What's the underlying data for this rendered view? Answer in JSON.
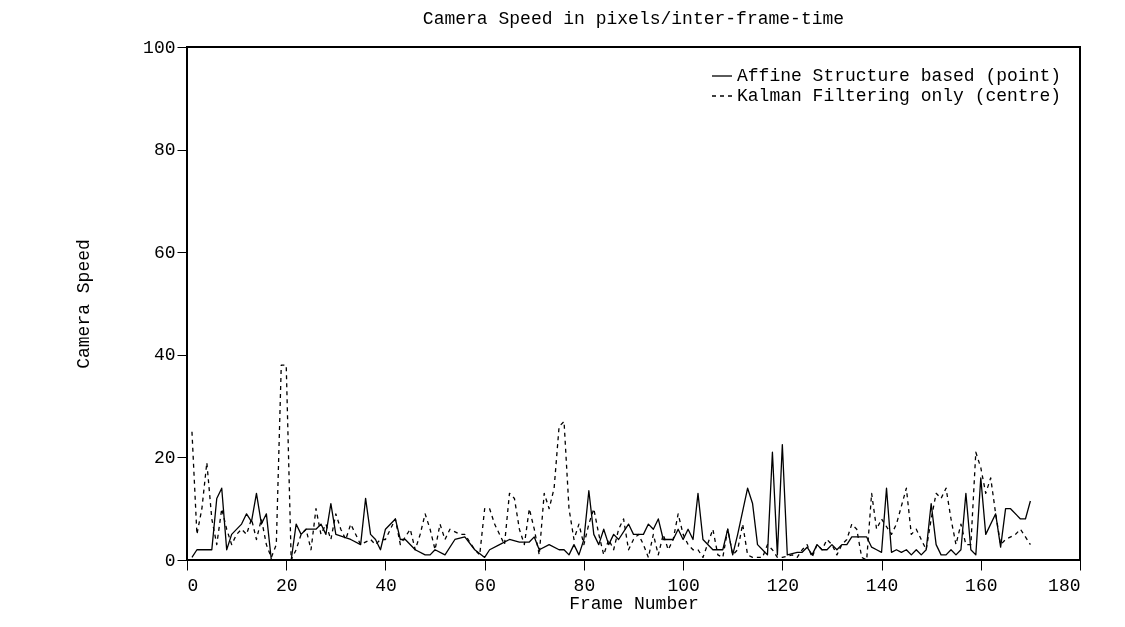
{
  "chart_data": {
    "type": "line",
    "title": "Camera Speed in pixels/inter-frame-time",
    "xlabel": "Frame Number",
    "ylabel": "Camera Speed",
    "xlim": [
      0,
      180
    ],
    "xticks": [
      0,
      20,
      40,
      60,
      80,
      100,
      120,
      140,
      160,
      180
    ],
    "ylim": [
      0,
      100
    ],
    "yticks": [
      0,
      20,
      40,
      60,
      80,
      100
    ],
    "grid": false,
    "legend": "top right",
    "series": [
      {
        "name": "Affine Structure based (point)",
        "color": "#000000",
        "line_style": "solid",
        "x": [
          1,
          2,
          5,
          6,
          7,
          8,
          9,
          11,
          12,
          13,
          14,
          15,
          16,
          17,
          21,
          22,
          23,
          24,
          26,
          27,
          28,
          29,
          30,
          33,
          35,
          36,
          37,
          38,
          39,
          40,
          42,
          43,
          44,
          46,
          48,
          49,
          50,
          52,
          54,
          56,
          58,
          60,
          61,
          63,
          65,
          67,
          69,
          70,
          71,
          73,
          75,
          76,
          77,
          78,
          79,
          80,
          81,
          82,
          83,
          84,
          85,
          86,
          87,
          89,
          90,
          92,
          93,
          94,
          95,
          96,
          98,
          99,
          100,
          101,
          102,
          103,
          104,
          106,
          108,
          109,
          110,
          111,
          113,
          114,
          115,
          117,
          118,
          119,
          120,
          121,
          123,
          124,
          125,
          126,
          127,
          128,
          129,
          130,
          131,
          132,
          133,
          134,
          137,
          138,
          139,
          140,
          141,
          142,
          143,
          144,
          145,
          146,
          147,
          148,
          149,
          150,
          151,
          152,
          153,
          154,
          155,
          156,
          157,
          158,
          159,
          160,
          161,
          163,
          164,
          165,
          166,
          168,
          169,
          170
        ],
        "values": [
          0.5,
          2,
          2,
          12,
          14,
          2,
          5,
          7,
          9,
          7.5,
          13,
          7,
          9,
          0,
          0,
          7,
          5,
          6,
          6,
          7,
          5,
          11,
          5,
          4,
          3,
          12,
          5,
          4,
          2,
          6,
          8,
          4,
          4,
          2,
          1,
          1,
          2,
          1,
          4,
          4.5,
          2,
          0.5,
          2,
          3,
          4,
          3.5,
          3.5,
          4.5,
          2,
          3,
          2,
          2,
          1,
          3,
          1,
          4,
          13.5,
          5,
          3,
          6,
          3,
          5,
          4,
          7,
          5,
          5,
          7,
          6,
          8,
          4,
          4,
          6,
          4,
          6,
          4,
          13,
          4,
          2,
          2,
          6,
          1,
          5,
          14,
          11,
          3,
          1,
          21,
          1,
          22.5,
          1,
          1.5,
          1.5,
          2.5,
          1,
          3,
          2,
          2,
          3,
          2,
          3,
          3,
          4.5,
          4.5,
          2.5,
          2,
          1.5,
          14,
          1.5,
          2,
          1.5,
          2,
          1,
          2,
          1,
          2,
          11,
          3,
          1,
          1,
          2,
          1,
          2,
          13,
          2,
          1,
          16,
          5,
          9,
          2.5,
          10,
          10,
          8,
          8,
          11.5
        ]
      },
      {
        "name": "Kalman Filtering only (centre)",
        "color": "#000000",
        "line_style": "dashed",
        "x": [
          1,
          2,
          3,
          4,
          5,
          6,
          7,
          8,
          9,
          10,
          11,
          12,
          13,
          14,
          15,
          16,
          17,
          18,
          19,
          20,
          21,
          22,
          23,
          24,
          25,
          26,
          27,
          28,
          29,
          30,
          31,
          32,
          33,
          35,
          37,
          38,
          39,
          40,
          42,
          43,
          45,
          46,
          47,
          48,
          49,
          50,
          51,
          52,
          53,
          55,
          56,
          58,
          59,
          60,
          61,
          62,
          64,
          65,
          66,
          67,
          68,
          69,
          70,
          71,
          72,
          73,
          74,
          75,
          76,
          77,
          78,
          79,
          80,
          81,
          82,
          83,
          84,
          85,
          86,
          87,
          88,
          89,
          90,
          91,
          92,
          93,
          94,
          95,
          96,
          97,
          98,
          99,
          100,
          101,
          102,
          103,
          104,
          106,
          107,
          108,
          109,
          110,
          111,
          112,
          113,
          114,
          116,
          117,
          118,
          119,
          120,
          122,
          123,
          124,
          125,
          126,
          127,
          128,
          129,
          130,
          131,
          132,
          133,
          134,
          135,
          136,
          137,
          138,
          139,
          140,
          142,
          143,
          145,
          146,
          147,
          148,
          149,
          150,
          151,
          152,
          153,
          154,
          155,
          156,
          157,
          158,
          159,
          160,
          161,
          162,
          163,
          164,
          165,
          167,
          168,
          170
        ],
        "values": [
          25,
          5,
          10,
          19,
          8,
          3,
          10,
          6,
          3,
          5,
          6,
          5,
          8,
          4,
          8,
          3,
          0.5,
          3,
          38,
          38,
          0,
          2,
          5,
          6,
          2,
          10,
          5,
          7,
          4,
          9,
          6,
          4,
          7,
          3,
          4,
          3,
          4,
          4,
          8,
          3,
          6,
          2,
          5,
          9,
          6,
          2,
          7,
          4,
          6,
          5,
          5,
          2,
          1,
          10,
          10,
          7,
          3,
          13,
          12,
          6,
          3,
          10,
          6,
          1,
          13,
          10,
          14,
          26,
          27,
          10,
          4,
          7,
          3,
          7,
          10,
          5,
          1,
          4,
          2,
          6,
          8,
          2,
          4,
          5,
          3,
          0.5,
          5,
          1,
          5,
          2,
          4,
          9,
          5,
          3,
          2,
          2,
          0.5,
          6,
          1,
          0.5,
          6,
          1,
          2,
          7,
          1,
          0.5,
          0.5,
          3,
          2,
          0.5,
          0.5,
          1,
          0.5,
          2,
          3,
          0.5,
          3,
          2,
          4,
          3,
          1,
          3,
          4,
          7,
          6,
          0.5,
          0,
          13,
          6,
          8,
          5,
          7,
          14,
          5,
          6,
          4,
          2,
          8,
          13,
          12,
          14,
          8,
          3,
          7,
          3,
          3,
          21,
          18,
          13,
          16,
          9,
          3,
          4,
          5,
          6,
          3
        ]
      }
    ]
  }
}
